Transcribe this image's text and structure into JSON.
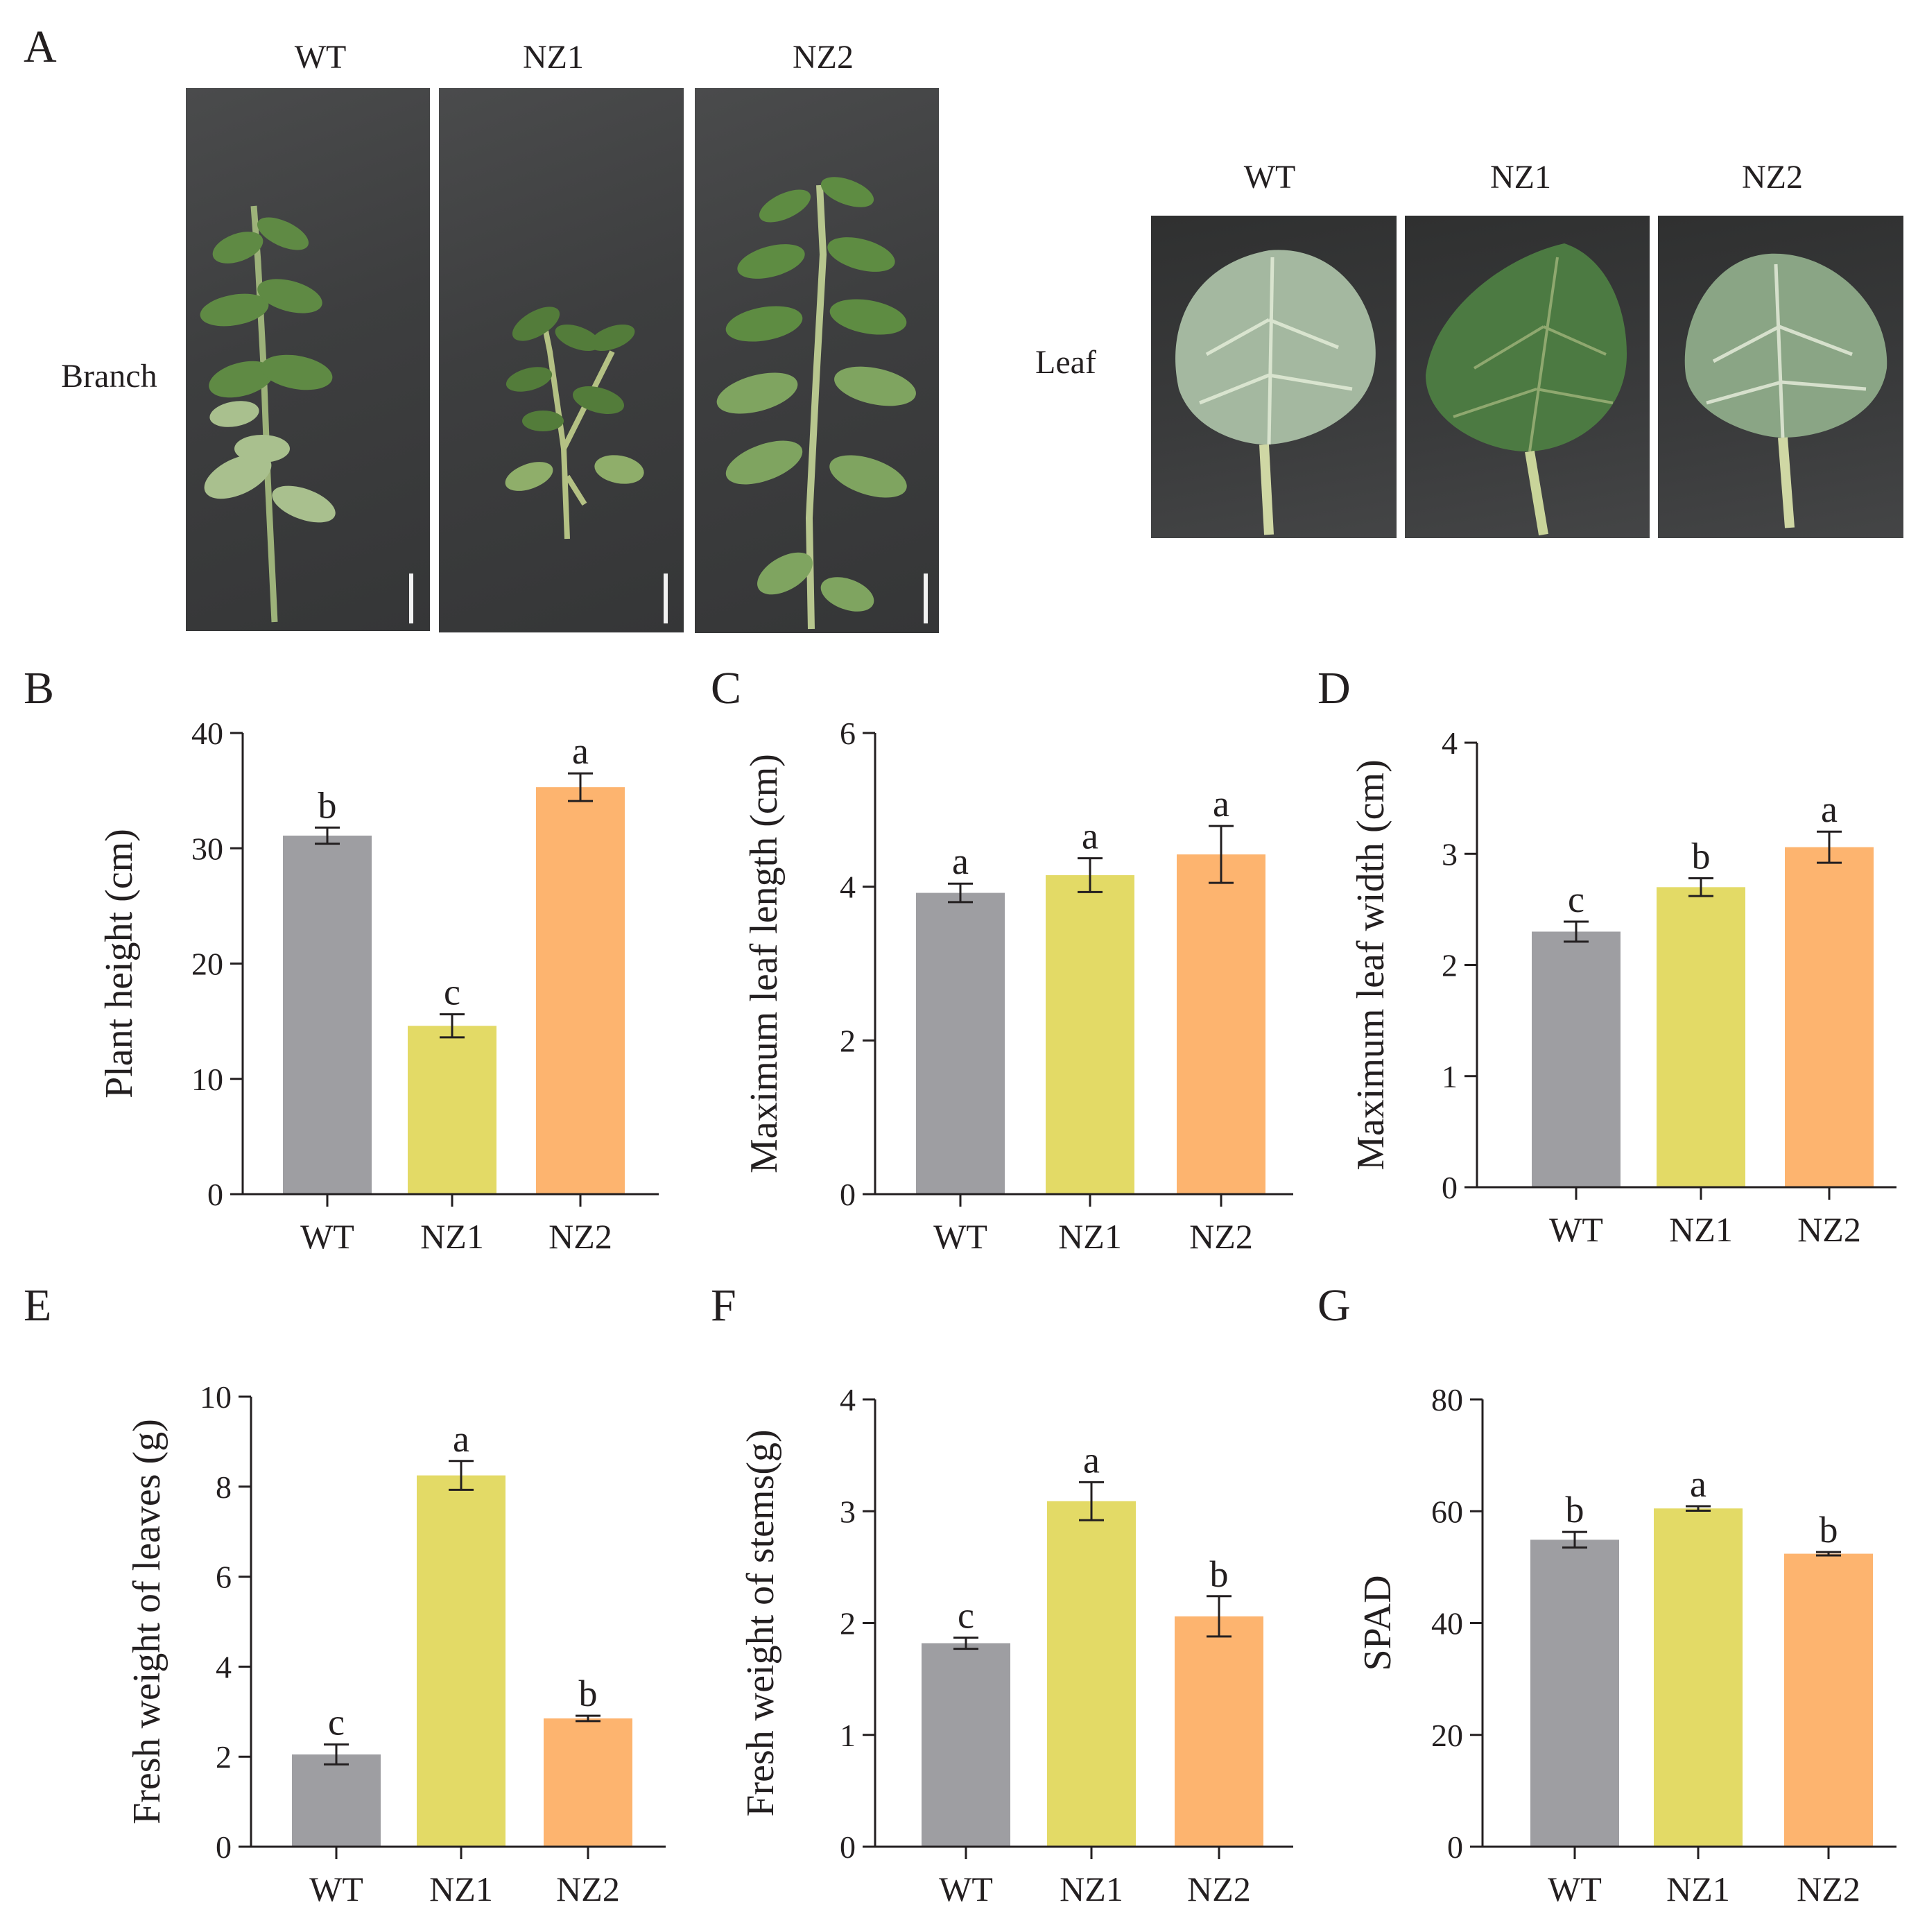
{
  "panel_a": {
    "letter": "A",
    "branch_label": "Branch",
    "leaf_label": "Leaf",
    "branch_genotypes": [
      "WT",
      "NZ1",
      "NZ2"
    ],
    "leaf_genotypes": [
      "WT",
      "NZ1",
      "NZ2"
    ]
  },
  "colors": {
    "WT": "#9e9ea2",
    "NZ1": "#e3da66",
    "NZ2": "#fdb46f"
  },
  "chart_data": [
    {
      "id": "B",
      "type": "bar",
      "categories": [
        "WT",
        "NZ1",
        "NZ2"
      ],
      "values": [
        31.1,
        14.6,
        35.3
      ],
      "errors": [
        0.7,
        1.0,
        1.2
      ],
      "letters": [
        "b",
        "c",
        "a"
      ],
      "ylabel": "Plant height (cm)",
      "ylim": [
        0,
        40
      ],
      "yticks": [
        "0",
        "10",
        "20",
        "30",
        "40"
      ]
    },
    {
      "id": "C",
      "type": "bar",
      "categories": [
        "WT",
        "NZ1",
        "NZ2"
      ],
      "values": [
        3.92,
        4.15,
        4.42
      ],
      "errors": [
        0.12,
        0.22,
        0.37
      ],
      "letters": [
        "a",
        "a",
        "a"
      ],
      "ylabel": "Maximum leaf length (cm)",
      "ylim": [
        0,
        6
      ],
      "yticks": [
        "0",
        "2",
        "4",
        "6"
      ]
    },
    {
      "id": "D",
      "type": "bar",
      "categories": [
        "WT",
        "NZ1",
        "NZ2"
      ],
      "values": [
        2.3,
        2.7,
        3.06
      ],
      "errors": [
        0.09,
        0.08,
        0.14
      ],
      "letters": [
        "c",
        "b",
        "a"
      ],
      "ylabel": "Maximum leaf width (cm)",
      "ylim": [
        0,
        4
      ],
      "yticks": [
        "0",
        "1",
        "2",
        "3",
        "4"
      ]
    },
    {
      "id": "E",
      "type": "bar",
      "categories": [
        "WT",
        "NZ1",
        "NZ2"
      ],
      "values": [
        2.05,
        8.25,
        2.85
      ],
      "errors": [
        0.22,
        0.32,
        0.06
      ],
      "letters": [
        "c",
        "a",
        "b"
      ],
      "ylabel": "Fresh weight of leaves (g)",
      "ylim": [
        0,
        10
      ],
      "yticks": [
        "0",
        "2",
        "4",
        "6",
        "8",
        "10"
      ]
    },
    {
      "id": "F",
      "type": "bar",
      "categories": [
        "WT",
        "NZ1",
        "NZ2"
      ],
      "values": [
        1.82,
        3.09,
        2.06
      ],
      "errors": [
        0.05,
        0.17,
        0.18
      ],
      "letters": [
        "c",
        "a",
        "b"
      ],
      "ylabel": "Fresh weight of stems(g)",
      "ylim": [
        0,
        4
      ],
      "yticks": [
        "0",
        "1",
        "2",
        "3",
        "4"
      ]
    },
    {
      "id": "G",
      "type": "bar",
      "categories": [
        "WT",
        "NZ1",
        "NZ2"
      ],
      "values": [
        54.9,
        60.5,
        52.4
      ],
      "errors": [
        1.4,
        0.4,
        0.3
      ],
      "letters": [
        "b",
        "a",
        "b"
      ],
      "ylabel": "SPAD",
      "ylim": [
        0,
        80
      ],
      "yticks": [
        "0",
        "20",
        "40",
        "60",
        "80"
      ]
    }
  ]
}
